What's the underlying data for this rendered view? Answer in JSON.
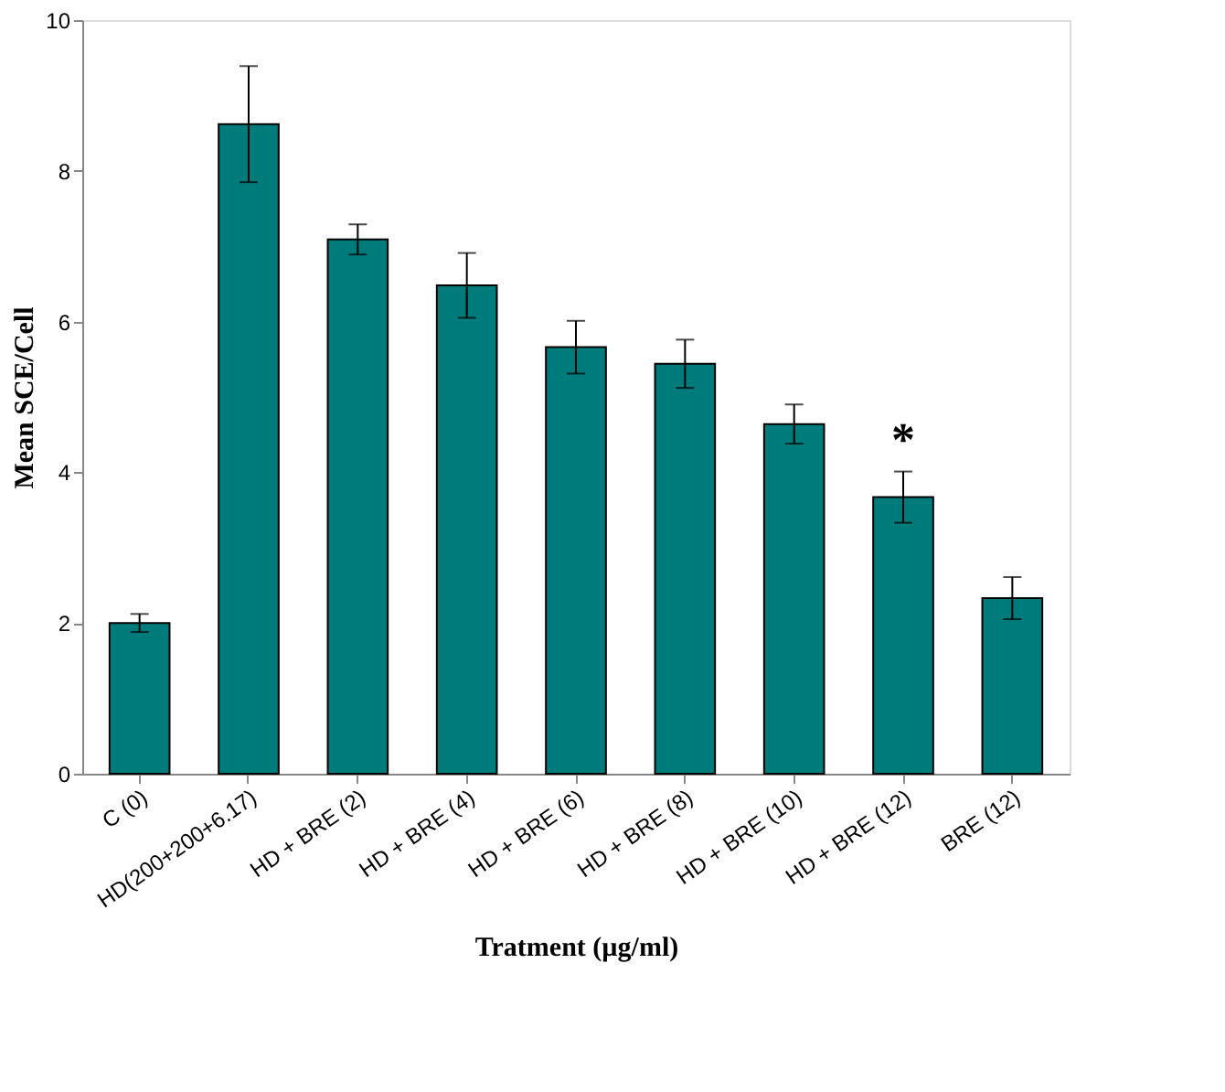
{
  "chart_data": {
    "type": "bar",
    "xlabel": "Tratment (µg/ml)",
    "ylabel": "Mean SCE/Cell",
    "categories": [
      "C (0)",
      "HD(200+200+6.17)",
      "HD + BRE (2)",
      "HD + BRE (4)",
      "HD + BRE (6)",
      "HD + BRE (8)",
      "HD + BRE (10)",
      "HD + BRE (12)",
      "BRE (12)"
    ],
    "values": [
      2.0,
      8.62,
      7.09,
      6.48,
      5.66,
      5.44,
      4.64,
      3.67,
      2.33
    ],
    "errors": [
      0.12,
      0.77,
      0.2,
      0.43,
      0.35,
      0.32,
      0.26,
      0.34,
      0.28
    ],
    "color": "#007b7b",
    "ylim": [
      0,
      10
    ],
    "yticks": [
      0,
      2,
      4,
      6,
      8,
      10
    ],
    "grid": false,
    "annotations": [
      {
        "text": "*",
        "x": "HD + BRE (12)",
        "y": 4.01
      }
    ]
  }
}
